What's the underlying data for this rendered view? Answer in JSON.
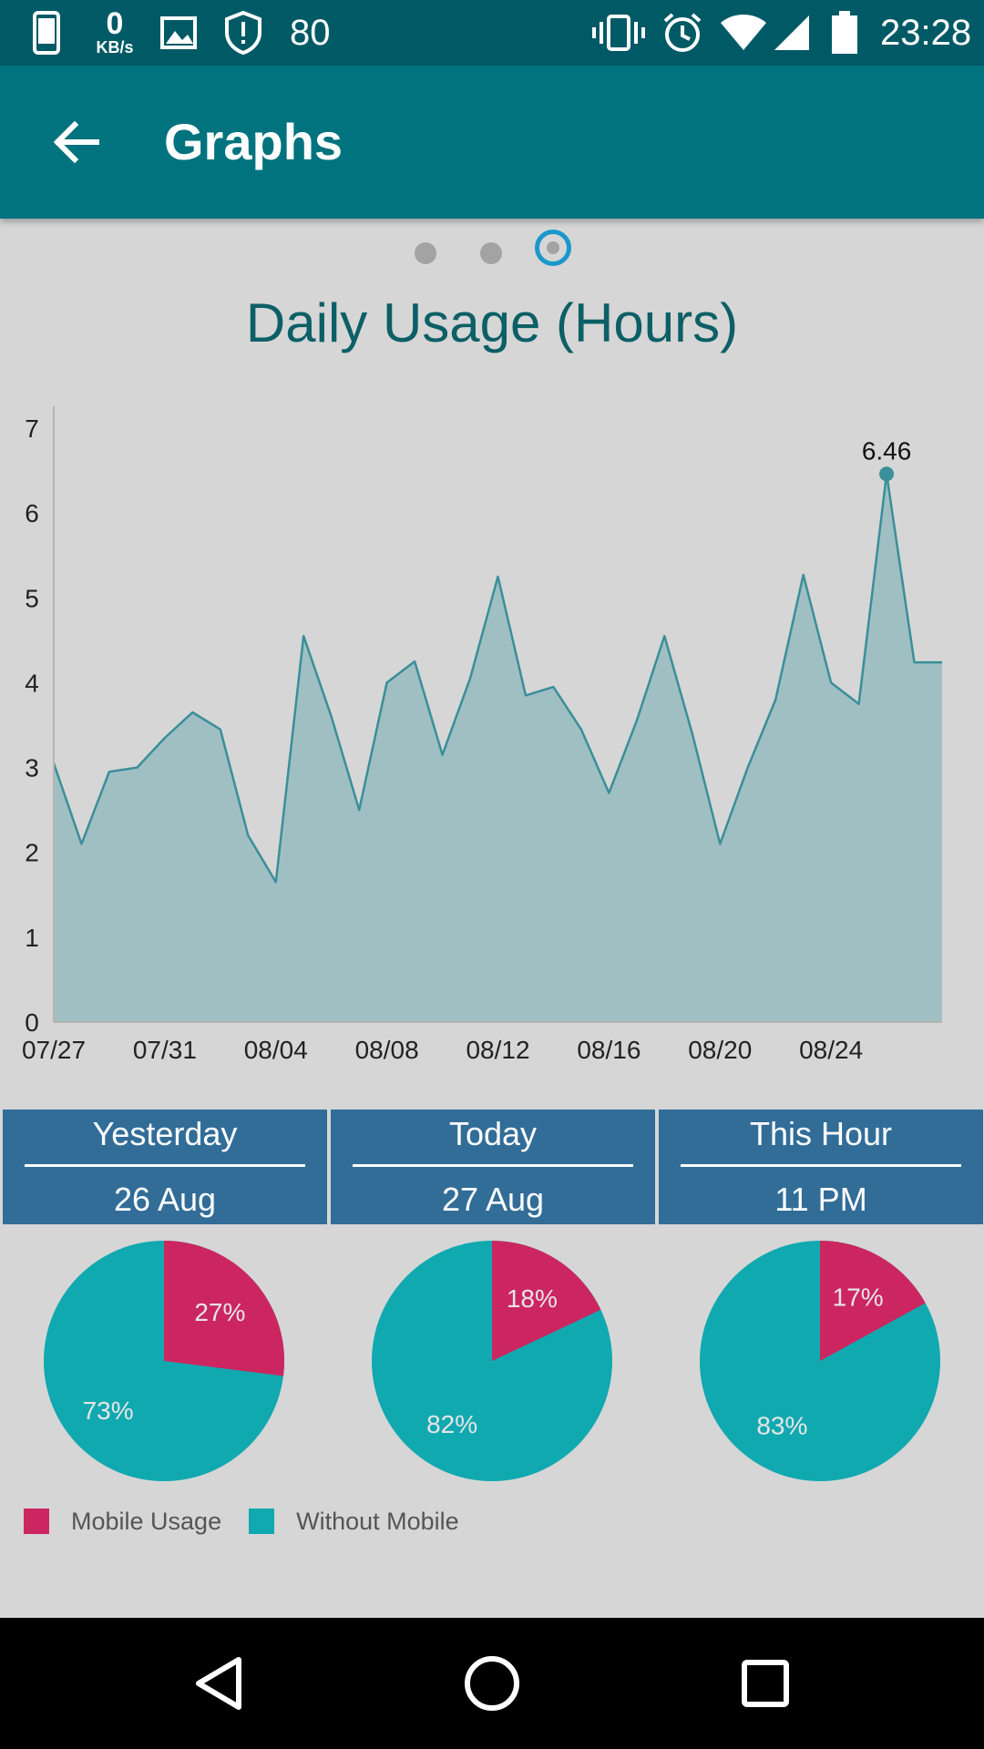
{
  "status_bar": {
    "net_speed_value": "0",
    "net_speed_unit": "KB/s",
    "shield_number": "80",
    "time": "23:28",
    "icons": [
      "phone-icon",
      "image-icon",
      "shield-icon",
      "vibrate-icon",
      "alarm-icon",
      "wifi-icon",
      "signal-icon",
      "battery-icon"
    ]
  },
  "app_bar": {
    "title": "Graphs",
    "back_icon": "arrow-back-icon"
  },
  "pager": {
    "pages": 3,
    "active_index": 2
  },
  "colors": {
    "status_bar": "#005a66",
    "app_bar": "#00737e",
    "line": "#3a8f99",
    "area": "#a0bfc3",
    "card": "#326d98",
    "mobile": "#cc2660",
    "without": "#11a9b0",
    "background": "#d6d6d6"
  },
  "chart_data": {
    "type": "area",
    "title": "Daily Usage (Hours)",
    "x": [
      "07/27",
      "07/28",
      "07/29",
      "07/30",
      "07/31",
      "08/01",
      "08/02",
      "08/03",
      "08/04",
      "08/05",
      "08/06",
      "08/07",
      "08/08",
      "08/09",
      "08/10",
      "08/11",
      "08/12",
      "08/13",
      "08/14",
      "08/15",
      "08/16",
      "08/17",
      "08/18",
      "08/19",
      "08/20",
      "08/21",
      "08/22",
      "08/23",
      "08/24",
      "08/25",
      "08/26",
      "08/27",
      "08/28"
    ],
    "x_ticks": [
      "07/27",
      "07/31",
      "08/04",
      "08/08",
      "08/12",
      "08/16",
      "08/20",
      "08/24"
    ],
    "values": [
      3.05,
      2.1,
      2.95,
      3.0,
      3.35,
      3.65,
      3.45,
      2.2,
      1.65,
      4.55,
      3.6,
      2.5,
      4.0,
      4.25,
      3.15,
      4.05,
      5.25,
      3.85,
      3.95,
      3.45,
      2.7,
      3.55,
      4.55,
      3.4,
      2.1,
      3.0,
      3.8,
      5.27,
      4.0,
      3.75,
      6.46,
      4.24,
      4.24
    ],
    "ylim": [
      0,
      7
    ],
    "y_ticks": [
      "0",
      "1",
      "2",
      "3",
      "4",
      "5",
      "6",
      "7"
    ],
    "highlight": {
      "index": 30,
      "label": "6.46"
    },
    "grid": false
  },
  "summary_cards": [
    {
      "period": "Yesterday",
      "date": "26 Aug",
      "mobile_pct": 27,
      "without_pct": 73,
      "mobile_label": "27%",
      "without_label": "73%"
    },
    {
      "period": "Today",
      "date": "27 Aug",
      "mobile_pct": 18,
      "without_pct": 82,
      "mobile_label": "18%",
      "without_label": "82%"
    },
    {
      "period": "This Hour",
      "date": "11 PM",
      "mobile_pct": 17,
      "without_pct": 83,
      "mobile_label": "17%",
      "without_label": "83%"
    }
  ],
  "legend": {
    "mobile": "Mobile Usage",
    "without": "Without Mobile"
  },
  "nav_bar": {
    "icons": [
      "back-triangle-icon",
      "home-circle-icon",
      "recents-square-icon"
    ]
  }
}
